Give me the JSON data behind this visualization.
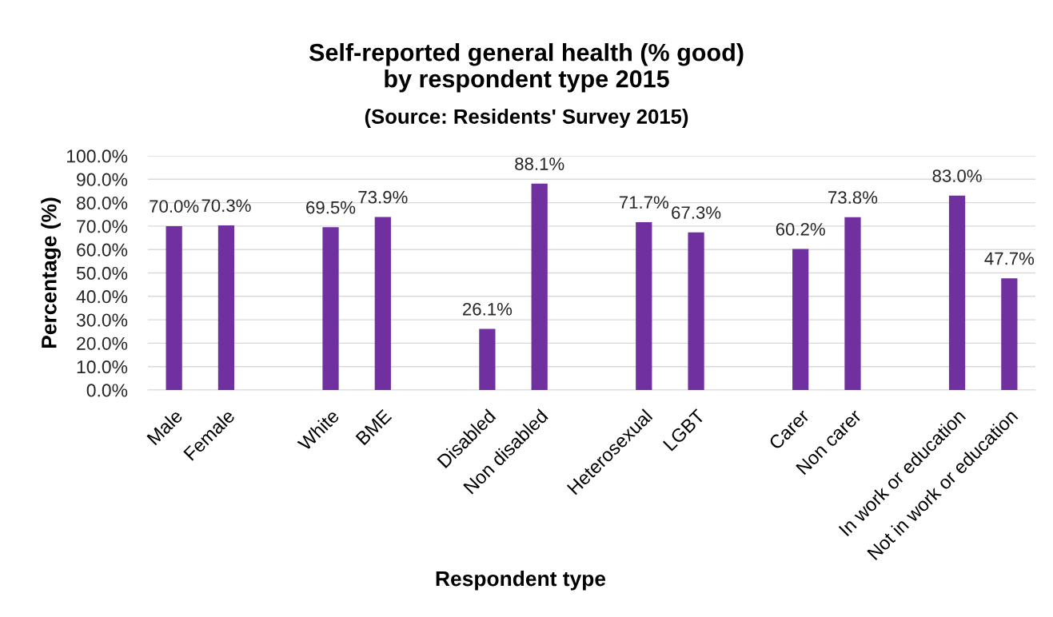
{
  "chart_data": {
    "type": "bar",
    "title": "Self-reported general health (% good)\nby respondent type 2015",
    "subtitle": "(Source: Residents' Survey 2015)",
    "xlabel": "Respondent type",
    "ylabel": "Percentage (%)",
    "categories": [
      "Male",
      "Female",
      null,
      "White",
      "BME",
      null,
      "Disabled",
      "Non disabled",
      null,
      "Heterosexual",
      "LGBT",
      null,
      "Carer",
      "Non carer",
      null,
      "In work or education",
      "Not in work or education"
    ],
    "values": [
      70.0,
      70.3,
      null,
      69.5,
      73.9,
      null,
      26.1,
      88.1,
      null,
      71.7,
      67.3,
      null,
      60.2,
      73.8,
      null,
      83.0,
      47.7
    ],
    "value_labels": [
      "70.0%",
      "70.3%",
      null,
      "69.5%",
      "73.9%",
      null,
      "26.1%",
      "88.1%",
      null,
      "71.7%",
      "67.3%",
      null,
      "60.2%",
      "73.8%",
      null,
      "83.0%",
      "47.7%"
    ],
    "color": "#7030a0",
    "ylim": [
      0,
      100
    ],
    "yticks": [
      {
        "value": 0,
        "label": "0.0%"
      },
      {
        "value": 10,
        "label": "10.0%"
      },
      {
        "value": 20,
        "label": "20.0%"
      },
      {
        "value": 30,
        "label": "30.0%"
      },
      {
        "value": 40,
        "label": "40.0%"
      },
      {
        "value": 50,
        "label": "50.0%"
      },
      {
        "value": 60,
        "label": "60.0%"
      },
      {
        "value": 70,
        "label": "70.0%"
      },
      {
        "value": 80,
        "label": "80.0%"
      },
      {
        "value": 90,
        "label": "90.0%"
      },
      {
        "value": 100,
        "label": "100.0%"
      }
    ],
    "grid": "y"
  }
}
